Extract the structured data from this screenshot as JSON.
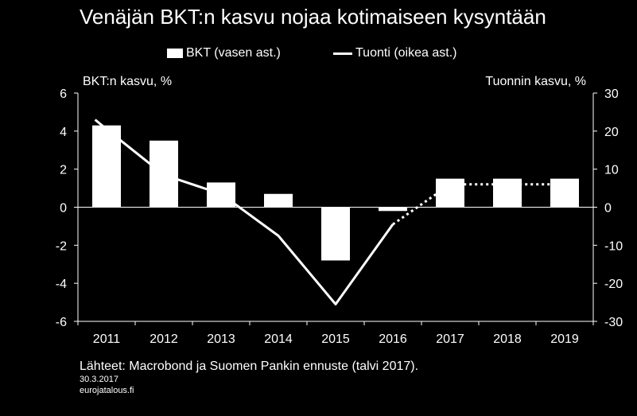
{
  "chart_data": {
    "type": "bar+line",
    "title": "Venäjän BKT:n kasvu nojaa kotimaiseen kysyntään",
    "categories": [
      "2011",
      "2012",
      "2013",
      "2014",
      "2015",
      "2016",
      "2017",
      "2018",
      "2019"
    ],
    "left_axis": {
      "label": "BKT:n kasvu, %",
      "ylim": [
        -6,
        6
      ],
      "ticks": [
        6,
        4,
        2,
        0,
        -2,
        -4,
        -6
      ],
      "tick_labels": [
        "6",
        "4",
        "2",
        "0",
        "-2",
        "-4",
        "-6"
      ]
    },
    "right_axis": {
      "label": "Tuonnin kasvu, %",
      "ylim": [
        -30,
        30
      ],
      "ticks": [
        30,
        20,
        10,
        0,
        -10,
        -20,
        -30
      ],
      "tick_labels": [
        "30",
        "20",
        "10",
        "0",
        "-10",
        "-20",
        "-30"
      ]
    },
    "series": [
      {
        "name": "BKT (vasen ast.)",
        "type": "bar",
        "axis": "left",
        "values": [
          4.3,
          3.5,
          1.3,
          0.7,
          -2.8,
          -0.2,
          1.5,
          1.5,
          1.5
        ]
      },
      {
        "name": "Tuonti (oikea ast.)",
        "type": "line",
        "axis": "right",
        "x": [
          2010.8,
          2011,
          2012,
          2013,
          2014,
          2015,
          2016,
          2017,
          2018,
          2019
        ],
        "values": [
          23,
          20.5,
          8.5,
          3.5,
          -7.5,
          -25.5,
          -4.5,
          6,
          6,
          6
        ],
        "forecast_from": "2016"
      }
    ],
    "grid": false,
    "legend_position": "top"
  },
  "footer": {
    "source": "Lähteet: Macrobond ja Suomen Pankin ennuste (talvi 2017).",
    "date": "30.3.2017",
    "site": "eurojatalous.fi"
  },
  "colors": {
    "background": "#000000",
    "foreground": "#ffffff"
  }
}
